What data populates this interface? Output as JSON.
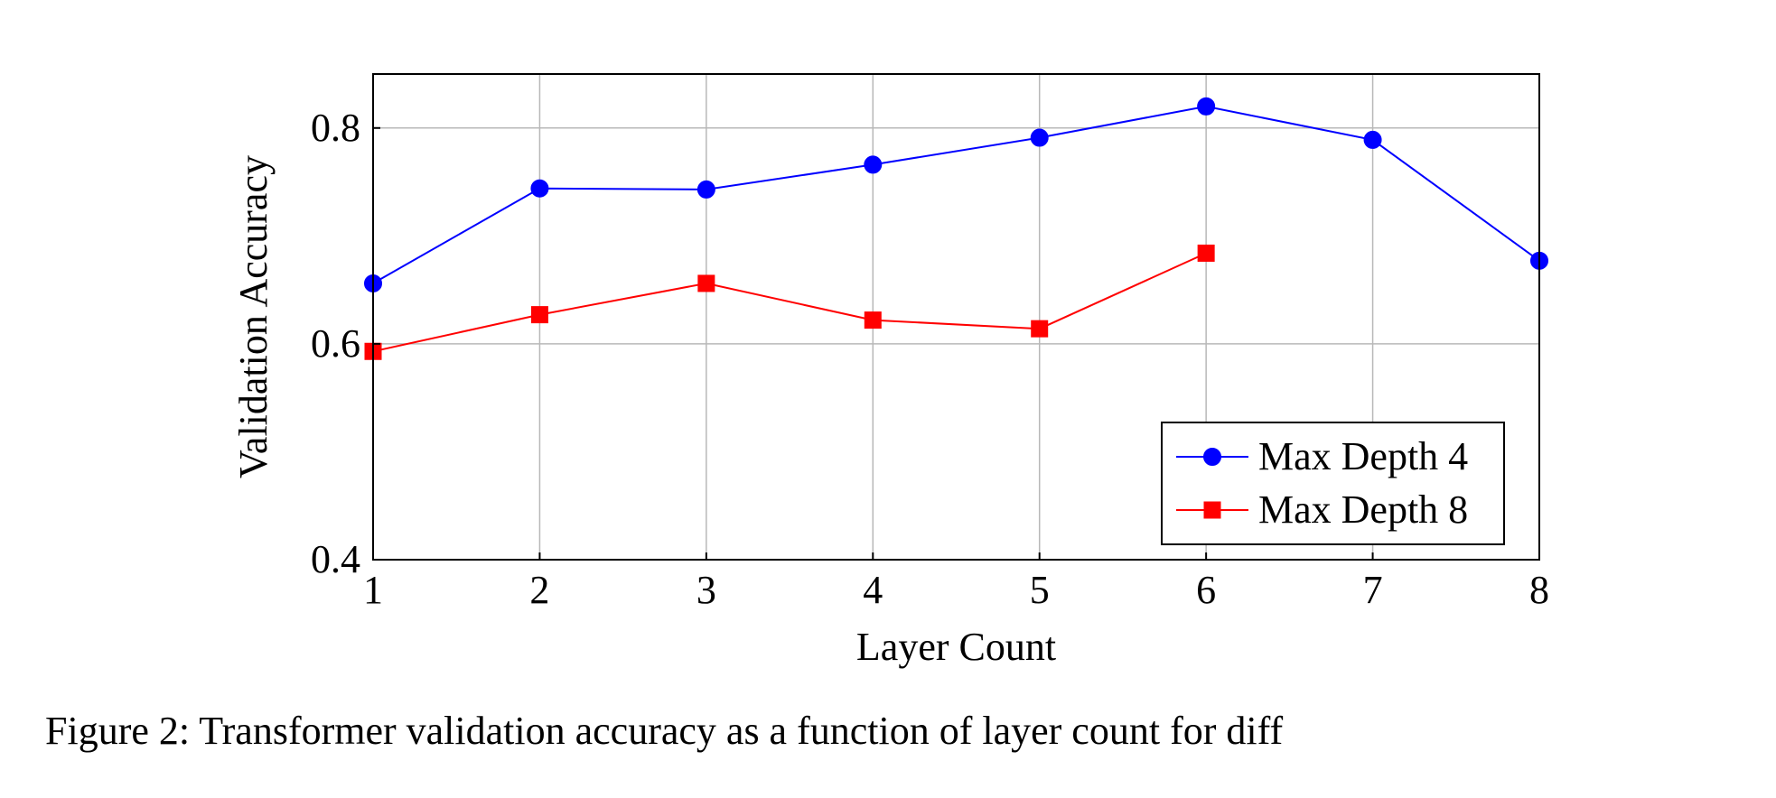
{
  "chart_data": {
    "type": "line",
    "xlabel": "Layer Count",
    "ylabel": "Validation Accuracy",
    "xlim": [
      1,
      8
    ],
    "ylim": [
      0.4,
      0.85
    ],
    "x_ticks": [
      1,
      2,
      3,
      4,
      5,
      6,
      7,
      8
    ],
    "y_ticks": [
      0.4,
      0.6,
      0.8
    ],
    "y_tick_labels": [
      "0.4",
      "0.6",
      "0.8"
    ],
    "grid": true,
    "legend_position": "bottom-right",
    "series": [
      {
        "name": "Max Depth 4",
        "color": "#0000ff",
        "marker": "circle",
        "x": [
          1,
          2,
          3,
          4,
          5,
          6,
          7,
          8
        ],
        "y": [
          0.656,
          0.744,
          0.743,
          0.766,
          0.791,
          0.82,
          0.789,
          0.677
        ]
      },
      {
        "name": "Max Depth 8",
        "color": "#ff0000",
        "marker": "square",
        "x": [
          1,
          2,
          3,
          4,
          5,
          6
        ],
        "y": [
          0.593,
          0.627,
          0.656,
          0.622,
          0.614,
          0.684
        ]
      }
    ]
  },
  "caption": {
    "text": "Figure 2: Transformer validation accuracy as a function of layer count for diff"
  }
}
